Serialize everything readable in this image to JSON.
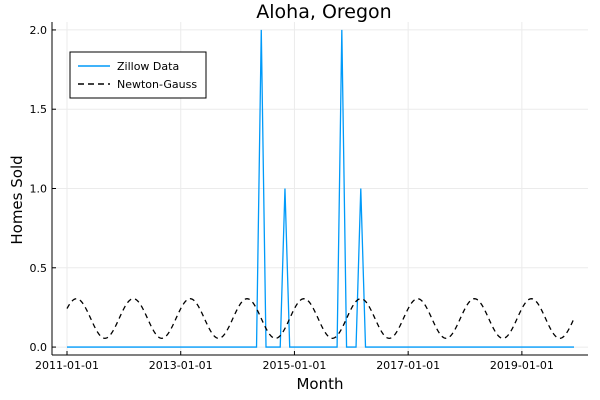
{
  "chart_data": {
    "type": "line",
    "title": "Aloha, Oregon",
    "xlabel": "Month",
    "ylabel": "Homes Sold",
    "x_ticks": [
      "2011-01-01",
      "2013-01-01",
      "2015-01-01",
      "2017-01-01",
      "2019-01-01"
    ],
    "y_ticks": [
      "0.0",
      "0.5",
      "1.0",
      "1.5",
      "2.0"
    ],
    "xlim": [
      "2011-01-01",
      "2019-12-01"
    ],
    "ylim": [
      -0.05,
      2.05
    ],
    "grid": true,
    "legend_position": "top-left",
    "series": [
      {
        "name": "Zillow Data",
        "color": "#009af9",
        "style": "solid",
        "points": [
          [
            "2011-01-01",
            0
          ],
          [
            "2014-05-01",
            0
          ],
          [
            "2014-06-01",
            2
          ],
          [
            "2014-07-01",
            0
          ],
          [
            "2014-10-01",
            0
          ],
          [
            "2014-11-01",
            1
          ],
          [
            "2014-12-01",
            0
          ],
          [
            "2015-10-01",
            0
          ],
          [
            "2015-11-01",
            2
          ],
          [
            "2015-12-01",
            0
          ],
          [
            "2016-02-01",
            0
          ],
          [
            "2016-03-01",
            1
          ],
          [
            "2016-04-01",
            0
          ],
          [
            "2019-12-01",
            0
          ]
        ]
      },
      {
        "name": "Newton-Gauss",
        "color": "#000000",
        "style": "dashed",
        "model": {
          "type": "sinusoid",
          "mean": 0.18,
          "amplitude": 0.125,
          "period_months": 12,
          "peak_month": 2
        },
        "start": "2011-01-01",
        "end": "2019-12-01"
      }
    ]
  }
}
